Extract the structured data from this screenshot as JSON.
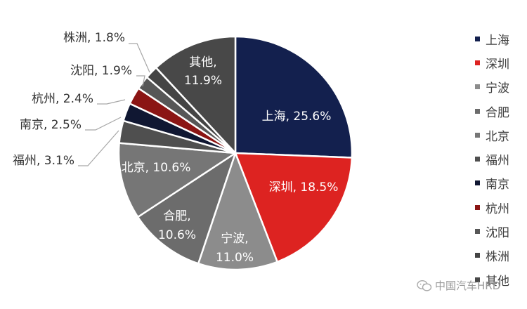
{
  "chart_data": {
    "type": "pie",
    "title": "",
    "categories": [
      "上海",
      "深圳",
      "宁波",
      "合肥",
      "北京",
      "福州",
      "南京",
      "杭州",
      "沈阳",
      "株洲",
      "其他"
    ],
    "values": [
      25.6,
      18.5,
      11.0,
      10.6,
      10.6,
      3.1,
      2.5,
      2.4,
      1.9,
      1.8,
      11.9
    ],
    "labels": [
      "上海, 25.6%",
      "深圳, 18.5%",
      "宁波,\n11.0%",
      "合肥,\n10.6%",
      "北京, 10.6%",
      "福州, 3.1%",
      "南京, 2.5%",
      "杭州, 2.4%",
      "沈阳, 1.9%",
      "株洲, 1.8%",
      "其他,\n11.9%"
    ],
    "colors": [
      "#13204e",
      "#dd2321",
      "#8c8c8c",
      "#6c6c6c",
      "#767676",
      "#4f4f4f",
      "#101732",
      "#8b1514",
      "#575757",
      "#444444",
      "#484848"
    ],
    "legend_position": "right"
  },
  "watermark": {
    "text": "中国汽车HRD",
    "icon": "wechat-icon"
  }
}
